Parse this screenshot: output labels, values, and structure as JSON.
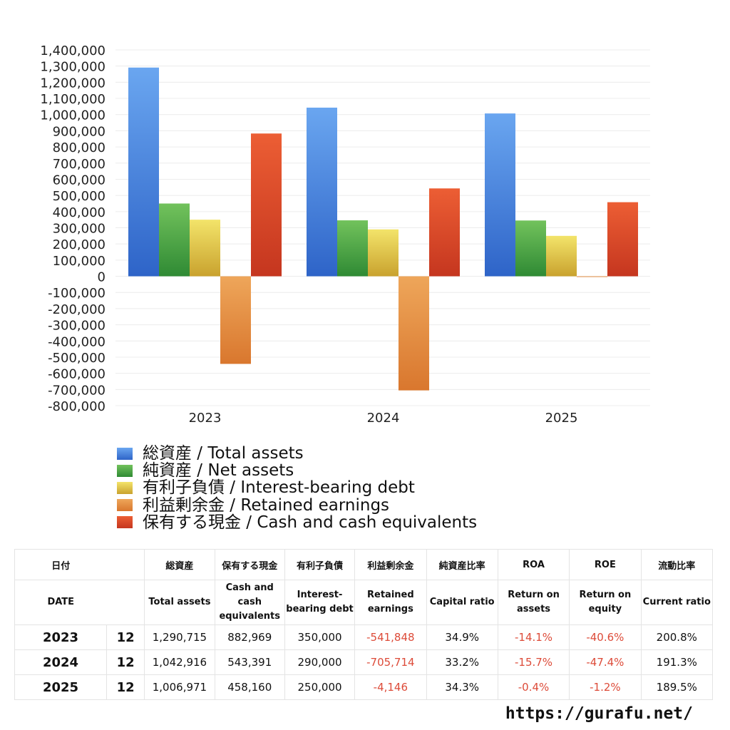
{
  "chart_data": {
    "type": "bar",
    "categories": [
      "2023",
      "2024",
      "2025"
    ],
    "series": [
      {
        "name": "総資産 / Total assets",
        "color": "#4a86e0",
        "values": [
          1290715,
          1042916,
          1006971
        ]
      },
      {
        "name": "純資産 / Net assets",
        "color": "#4aa444",
        "values": [
          450000,
          346000,
          345000
        ]
      },
      {
        "name": "有利子負債 / Interest-bearing debt",
        "color": "#e6c63a",
        "values": [
          350000,
          290000,
          250000
        ]
      },
      {
        "name": "利益剰余金 / Retained earnings",
        "color": "#e58e3a",
        "values": [
          -541848,
          -705714,
          -4146
        ]
      },
      {
        "name": "保有する現金 /  Cash and cash equivalents",
        "color": "#de4a2b",
        "values": [
          882969,
          543391,
          458160
        ]
      }
    ],
    "ylim": [
      -800000,
      1400000
    ],
    "ytick_step": 100000,
    "ytick_labels": [
      "1,400,000",
      "1,300,000",
      "1,200,000",
      "1,100,000",
      "1,000,000",
      "900,000",
      "800,000",
      "700,000",
      "600,000",
      "500,000",
      "400,000",
      "300,000",
      "200,000",
      "100,000",
      "0",
      "-100,000",
      "-200,000",
      "-300,000",
      "-400,000",
      "-500,000",
      "-600,000",
      "-700,000",
      "-800,000"
    ],
    "grid": true,
    "legend_position": "bottom-left"
  },
  "table": {
    "headers_ja": [
      "日付",
      "",
      "総資産",
      "保有する現金",
      "有利子負債",
      "利益剰余金",
      "純資産比率",
      "ROA",
      "ROE",
      "流動比率"
    ],
    "headers_en": [
      "DATE",
      "",
      "Total assets",
      "Cash and cash equivalents",
      "Interest-bearing debt",
      "Retained earnings",
      "Capital ratio",
      "Return on assets",
      "Return on equity",
      "Current ratio"
    ],
    "rows": [
      [
        "2023",
        "12",
        "1,290,715",
        "882,969",
        "350,000",
        "-541,848",
        "34.9%",
        "-14.1%",
        "-40.6%",
        "200.8%"
      ],
      [
        "2024",
        "12",
        "1,042,916",
        "543,391",
        "290,000",
        "-705,714",
        "33.2%",
        "-15.7%",
        "-47.4%",
        "191.3%"
      ],
      [
        "2025",
        "12",
        "1,006,971",
        "458,160",
        "250,000",
        "-4,146",
        "34.3%",
        "-0.4%",
        "-1.2%",
        "189.5%"
      ]
    ]
  },
  "footer": {
    "url": "https://gurafu.net/"
  }
}
